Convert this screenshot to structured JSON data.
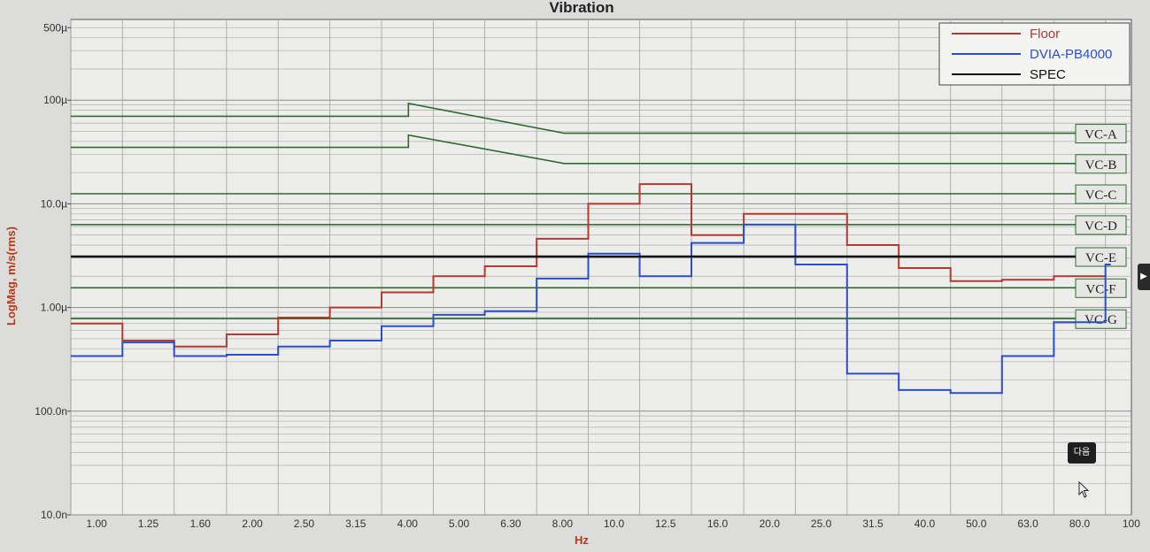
{
  "chart_data": {
    "type": "line",
    "title": "Vibration",
    "xlabel": "Hz",
    "ylabel": "LogMag, m/s(rms)",
    "x_scale": "log",
    "y_scale": "log",
    "xlim": [
      0.89,
      100
    ],
    "ylim": [
      1e-08,
      0.0006
    ],
    "grid": true,
    "legend_position": "top-right",
    "x_tick_labels": [
      "1.00",
      "1.25",
      "1.60",
      "2.00",
      "2.50",
      "3.15",
      "4.00",
      "5.00",
      "6.30",
      "8.00",
      "10.0",
      "12.5",
      "16.0",
      "20.0",
      "25.0",
      "31.5",
      "40.0",
      "50.0",
      "63.0",
      "80.0",
      "100"
    ],
    "y_ticks": [
      {
        "value": 0.0005,
        "label": "500µ"
      },
      {
        "value": 0.0001,
        "label": "100µ"
      },
      {
        "value": 1e-05,
        "label": "10.0µ"
      },
      {
        "value": 1e-06,
        "label": "1.00µ"
      },
      {
        "value": 1e-07,
        "label": "100.0n"
      },
      {
        "value": 1e-08,
        "label": "10.0n"
      }
    ],
    "band_edges_hz": [
      0.89,
      1.12,
      1.41,
      1.78,
      2.24,
      2.82,
      3.55,
      4.47,
      5.62,
      7.08,
      8.91,
      11.2,
      14.1,
      17.8,
      22.4,
      28.2,
      35.5,
      44.7,
      56.2,
      70.8,
      89.1
    ],
    "series": [
      {
        "name": "Floor",
        "color": "#b23a2e",
        "step_values": [
          7e-07,
          4.8e-07,
          4.2e-07,
          5.5e-07,
          8e-07,
          1e-06,
          1.4e-06,
          2e-06,
          2.5e-06,
          4.6e-06,
          1e-05,
          1.55e-05,
          5e-06,
          8e-06,
          8e-06,
          4e-06,
          2.4e-06,
          1.8e-06,
          1.85e-06,
          2e-06
        ]
      },
      {
        "name": "DVIA-PB4000",
        "color": "#2b4fc4",
        "step_values": [
          3.4e-07,
          4.6e-07,
          3.4e-07,
          3.5e-07,
          4.2e-07,
          4.8e-07,
          6.6e-07,
          8.5e-07,
          9.2e-07,
          1.9e-06,
          3.3e-06,
          2e-06,
          4.2e-06,
          6.3e-06,
          2.6e-06,
          2.3e-07,
          1.6e-07,
          1.5e-07,
          3.4e-07,
          7.2e-07,
          2.6e-06
        ]
      },
      {
        "name": "SPEC",
        "color": "#111111",
        "step_values": [
          3.1e-06
        ]
      }
    ],
    "criteria_curves": [
      {
        "label": "VC-A",
        "points": [
          [
            0.89,
            7e-05
          ],
          [
            4.0,
            7e-05
          ],
          [
            4.0,
            9.3e-05
          ],
          [
            8.0,
            4.8e-05
          ],
          [
            95,
            4.8e-05
          ]
        ]
      },
      {
        "label": "VC-B",
        "points": [
          [
            0.89,
            3.5e-05
          ],
          [
            4.0,
            3.5e-05
          ],
          [
            4.0,
            4.6e-05
          ],
          [
            8.0,
            2.45e-05
          ],
          [
            95,
            2.45e-05
          ]
        ]
      },
      {
        "label": "VC-C",
        "points": [
          [
            0.89,
            1.25e-05
          ],
          [
            95,
            1.25e-05
          ]
        ]
      },
      {
        "label": "VC-D",
        "points": [
          [
            0.89,
            6.3e-06
          ],
          [
            95,
            6.3e-06
          ]
        ]
      },
      {
        "label": "VC-E",
        "points": [
          [
            0.89,
            3.1e-06
          ],
          [
            95,
            3.1e-06
          ]
        ]
      },
      {
        "label": "VC-F",
        "points": [
          [
            0.89,
            1.55e-06
          ],
          [
            95,
            1.55e-06
          ]
        ]
      },
      {
        "label": "VC-G",
        "points": [
          [
            0.89,
            7.8e-07
          ],
          [
            95,
            7.8e-07
          ]
        ]
      }
    ],
    "criteria_color": "#2f6b2f"
  },
  "ui": {
    "side_tab_glyph": "▶",
    "next_button_label": "다음",
    "cursor_icon": "mouse-pointer-icon"
  }
}
